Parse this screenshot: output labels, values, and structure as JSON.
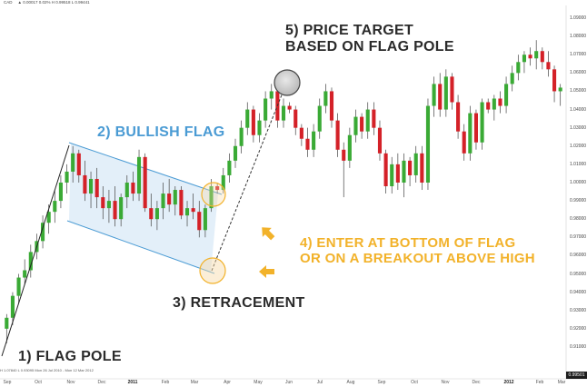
{
  "header": {
    "symbol_text": "CAD",
    "values_text": "▲ 0.00017   0.02%   H 0.99518   L 0.99441"
  },
  "footer_legend": {
    "text": "H 1.07840   L 0.93095     Mon 26 Jul 2010 - Mon 12 Mar 2012"
  },
  "annotations": {
    "flag_pole": "1) FLAG POLE",
    "bullish_flag": "2) BULLISH FLAG",
    "retracement": "3) RETRACEMENT",
    "enter_line1": "4) ENTER AT BOTTOM OF FLAG",
    "enter_line2": "OR ON A BREAKOUT ABOVE HIGH",
    "target_line1": "5) PRICE TARGET",
    "target_line2": "BASED ON FLAG POLE"
  },
  "last_price": "0.99501",
  "colors": {
    "up": "#3aaa35",
    "down": "#d42128",
    "flag": "#4a9bd4",
    "gold": "#f2b22a",
    "target_circle": "#9a9a9a"
  },
  "chart_data": {
    "type": "candlestick",
    "instrument": "CAD",
    "x_tick_labels": [
      "Sep",
      "Oct",
      "Nov",
      "Dec",
      "2011",
      "Feb",
      "Mar",
      "Apr",
      "May",
      "Jun",
      "Jul",
      "Aug",
      "Sep",
      "Oct",
      "Nov",
      "Dec",
      "2012",
      "Feb",
      "Mar"
    ],
    "x_tick_bold": [
      "2011",
      "2012"
    ],
    "y_tick_labels": [
      "1.09000",
      "1.08000",
      "1.07000",
      "1.06000",
      "1.05000",
      "1.04000",
      "1.03000",
      "1.02000",
      "1.01000",
      "1.00000",
      "0.99000",
      "0.98000",
      "0.97000",
      "0.96000",
      "0.95000",
      "0.94000",
      "0.93000",
      "0.92000",
      "0.91000"
    ],
    "ylim": [
      0.905,
      1.093
    ],
    "grid": false,
    "candles": [
      {
        "o": 0.92,
        "h": 0.928,
        "l": 0.912,
        "c": 0.926
      },
      {
        "o": 0.926,
        "h": 0.94,
        "l": 0.922,
        "c": 0.938
      },
      {
        "o": 0.938,
        "h": 0.95,
        "l": 0.934,
        "c": 0.948
      },
      {
        "o": 0.948,
        "h": 0.958,
        "l": 0.944,
        "c": 0.952
      },
      {
        "o": 0.952,
        "h": 0.966,
        "l": 0.948,
        "c": 0.962
      },
      {
        "o": 0.962,
        "h": 0.972,
        "l": 0.958,
        "c": 0.968
      },
      {
        "o": 0.968,
        "h": 0.982,
        "l": 0.964,
        "c": 0.978
      },
      {
        "o": 0.978,
        "h": 0.988,
        "l": 0.972,
        "c": 0.984
      },
      {
        "o": 0.984,
        "h": 0.996,
        "l": 0.978,
        "c": 0.99
      },
      {
        "o": 0.99,
        "h": 1.004,
        "l": 0.986,
        "c": 1.0
      },
      {
        "o": 1.0,
        "h": 1.01,
        "l": 0.994,
        "c": 1.006
      },
      {
        "o": 1.006,
        "h": 1.02,
        "l": 1.0,
        "c": 1.016
      },
      {
        "o": 1.016,
        "h": 1.018,
        "l": 1.0,
        "c": 1.004
      },
      {
        "o": 1.004,
        "h": 1.012,
        "l": 0.99,
        "c": 0.994
      },
      {
        "o": 0.994,
        "h": 1.006,
        "l": 0.986,
        "c": 1.002
      },
      {
        "o": 1.002,
        "h": 1.008,
        "l": 0.986,
        "c": 0.992
      },
      {
        "o": 0.992,
        "h": 0.998,
        "l": 0.98,
        "c": 0.986
      },
      {
        "o": 0.986,
        "h": 0.996,
        "l": 0.978,
        "c": 0.99
      },
      {
        "o": 0.99,
        "h": 0.998,
        "l": 0.976,
        "c": 0.98
      },
      {
        "o": 0.98,
        "h": 0.994,
        "l": 0.976,
        "c": 0.992
      },
      {
        "o": 0.992,
        "h": 1.004,
        "l": 0.986,
        "c": 1.0
      },
      {
        "o": 1.0,
        "h": 1.006,
        "l": 0.99,
        "c": 0.994
      },
      {
        "o": 0.994,
        "h": 1.018,
        "l": 0.99,
        "c": 1.014
      },
      {
        "o": 1.014,
        "h": 1.016,
        "l": 0.984,
        "c": 0.986
      },
      {
        "o": 0.986,
        "h": 0.994,
        "l": 0.976,
        "c": 0.98
      },
      {
        "o": 0.98,
        "h": 0.99,
        "l": 0.974,
        "c": 0.986
      },
      {
        "o": 0.986,
        "h": 1.0,
        "l": 0.98,
        "c": 0.994
      },
      {
        "o": 0.994,
        "h": 1.002,
        "l": 0.984,
        "c": 0.988
      },
      {
        "o": 0.988,
        "h": 0.998,
        "l": 0.982,
        "c": 0.996
      },
      {
        "o": 0.996,
        "h": 0.998,
        "l": 0.98,
        "c": 0.982
      },
      {
        "o": 0.982,
        "h": 0.99,
        "l": 0.976,
        "c": 0.986
      },
      {
        "o": 0.986,
        "h": 0.994,
        "l": 0.98,
        "c": 0.984
      },
      {
        "o": 0.984,
        "h": 0.99,
        "l": 0.97,
        "c": 0.974
      },
      {
        "o": 0.974,
        "h": 0.988,
        "l": 0.97,
        "c": 0.986
      },
      {
        "o": 0.986,
        "h": 1.002,
        "l": 0.984,
        "c": 0.998
      },
      {
        "o": 0.998,
        "h": 1.0,
        "l": 0.994,
        "c": 0.996
      },
      {
        "o": 0.996,
        "h": 1.008,
        "l": 0.994,
        "c": 1.004
      },
      {
        "o": 1.004,
        "h": 1.016,
        "l": 1.0,
        "c": 1.012
      },
      {
        "o": 1.012,
        "h": 1.024,
        "l": 1.008,
        "c": 1.02
      },
      {
        "o": 1.02,
        "h": 1.034,
        "l": 1.016,
        "c": 1.03
      },
      {
        "o": 1.03,
        "h": 1.044,
        "l": 1.026,
        "c": 1.04
      },
      {
        "o": 1.04,
        "h": 1.042,
        "l": 1.022,
        "c": 1.026
      },
      {
        "o": 1.026,
        "h": 1.038,
        "l": 1.022,
        "c": 1.034
      },
      {
        "o": 1.034,
        "h": 1.05,
        "l": 1.03,
        "c": 1.046
      },
      {
        "o": 1.046,
        "h": 1.054,
        "l": 1.04,
        "c": 1.05
      },
      {
        "o": 1.05,
        "h": 1.052,
        "l": 1.03,
        "c": 1.034
      },
      {
        "o": 1.034,
        "h": 1.046,
        "l": 1.03,
        "c": 1.042
      },
      {
        "o": 1.042,
        "h": 1.044,
        "l": 1.038,
        "c": 1.04
      },
      {
        "o": 1.04,
        "h": 1.042,
        "l": 1.026,
        "c": 1.03
      },
      {
        "o": 1.03,
        "h": 1.032,
        "l": 1.02,
        "c": 1.024
      },
      {
        "o": 1.024,
        "h": 1.03,
        "l": 1.014,
        "c": 1.018
      },
      {
        "o": 1.018,
        "h": 1.032,
        "l": 1.014,
        "c": 1.028
      },
      {
        "o": 1.028,
        "h": 1.046,
        "l": 1.024,
        "c": 1.042
      },
      {
        "o": 1.042,
        "h": 1.054,
        "l": 1.038,
        "c": 1.05
      },
      {
        "o": 1.05,
        "h": 1.052,
        "l": 1.03,
        "c": 1.034
      },
      {
        "o": 1.034,
        "h": 1.038,
        "l": 1.014,
        "c": 1.018
      },
      {
        "o": 1.018,
        "h": 1.022,
        "l": 0.992,
        "c": 1.012
      },
      {
        "o": 1.012,
        "h": 1.03,
        "l": 1.008,
        "c": 1.026
      },
      {
        "o": 1.026,
        "h": 1.04,
        "l": 1.022,
        "c": 1.036
      },
      {
        "o": 1.036,
        "h": 1.038,
        "l": 1.024,
        "c": 1.028
      },
      {
        "o": 1.028,
        "h": 1.044,
        "l": 1.024,
        "c": 1.04
      },
      {
        "o": 1.04,
        "h": 1.044,
        "l": 1.026,
        "c": 1.03
      },
      {
        "o": 1.03,
        "h": 1.034,
        "l": 1.012,
        "c": 1.016
      },
      {
        "o": 1.016,
        "h": 1.018,
        "l": 0.994,
        "c": 0.998
      },
      {
        "o": 0.998,
        "h": 1.014,
        "l": 0.994,
        "c": 1.01
      },
      {
        "o": 1.01,
        "h": 1.016,
        "l": 0.996,
        "c": 1.0
      },
      {
        "o": 1.0,
        "h": 1.016,
        "l": 0.992,
        "c": 1.012
      },
      {
        "o": 1.012,
        "h": 1.014,
        "l": 0.998,
        "c": 1.004
      },
      {
        "o": 1.004,
        "h": 1.02,
        "l": 1.0,
        "c": 1.016
      },
      {
        "o": 1.016,
        "h": 1.02,
        "l": 0.996,
        "c": 1.0
      },
      {
        "o": 1.0,
        "h": 1.046,
        "l": 0.996,
        "c": 1.042
      },
      {
        "o": 1.042,
        "h": 1.058,
        "l": 1.036,
        "c": 1.054
      },
      {
        "o": 1.054,
        "h": 1.06,
        "l": 1.036,
        "c": 1.04
      },
      {
        "o": 1.04,
        "h": 1.062,
        "l": 1.036,
        "c": 1.058
      },
      {
        "o": 1.058,
        "h": 1.06,
        "l": 1.04,
        "c": 1.044
      },
      {
        "o": 1.044,
        "h": 1.048,
        "l": 1.024,
        "c": 1.028
      },
      {
        "o": 1.028,
        "h": 1.032,
        "l": 1.012,
        "c": 1.016
      },
      {
        "o": 1.016,
        "h": 1.042,
        "l": 1.012,
        "c": 1.038
      },
      {
        "o": 1.038,
        "h": 1.04,
        "l": 1.018,
        "c": 1.022
      },
      {
        "o": 1.022,
        "h": 1.046,
        "l": 1.018,
        "c": 1.044
      },
      {
        "o": 1.044,
        "h": 1.046,
        "l": 1.038,
        "c": 1.04
      },
      {
        "o": 1.04,
        "h": 1.048,
        "l": 1.034,
        "c": 1.046
      },
      {
        "o": 1.046,
        "h": 1.05,
        "l": 1.038,
        "c": 1.042
      },
      {
        "o": 1.042,
        "h": 1.058,
        "l": 1.038,
        "c": 1.054
      },
      {
        "o": 1.054,
        "h": 1.064,
        "l": 1.05,
        "c": 1.06
      },
      {
        "o": 1.06,
        "h": 1.07,
        "l": 1.056,
        "c": 1.066
      },
      {
        "o": 1.066,
        "h": 1.072,
        "l": 1.06,
        "c": 1.07
      },
      {
        "o": 1.07,
        "h": 1.074,
        "l": 1.064,
        "c": 1.068
      },
      {
        "o": 1.068,
        "h": 1.078,
        "l": 1.062,
        "c": 1.072
      },
      {
        "o": 1.072,
        "h": 1.074,
        "l": 1.062,
        "c": 1.066
      },
      {
        "o": 1.066,
        "h": 1.072,
        "l": 1.058,
        "c": 1.062
      },
      {
        "o": 1.062,
        "h": 1.064,
        "l": 1.044,
        "c": 1.05
      },
      {
        "o": 1.05,
        "h": 1.054,
        "l": 1.042,
        "c": 1.052
      }
    ]
  }
}
